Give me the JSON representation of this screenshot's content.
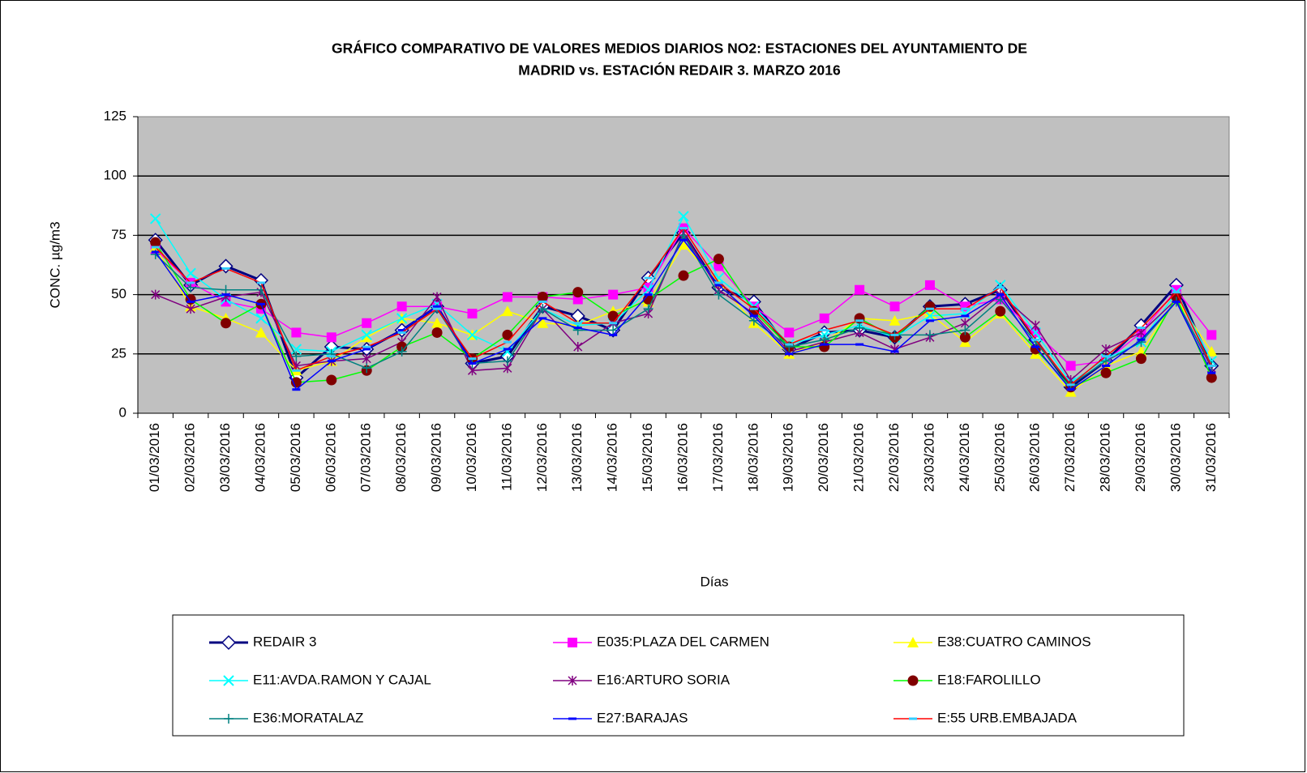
{
  "chart_data": {
    "type": "line",
    "title": [
      "GRÁFICO COMPARATIVO DE VALORES MEDIOS DIARIOS NO2: ESTACIONES DEL AYUNTAMIENTO DE",
      "MADRID vs.  ESTACIÓN REDAIR 3. MARZO 2016"
    ],
    "x_label": "Días",
    "y_label": "CONC.  µg/m3",
    "categories": [
      "01/03/2016",
      "02/03/2016",
      "03/03/2016",
      "04/03/2016",
      "05/03/2016",
      "06/03/2016",
      "07/03/2016",
      "08/03/2016",
      "09/03/2016",
      "10/03/2016",
      "11/03/2016",
      "12/03/2016",
      "13/03/2016",
      "14/03/2016",
      "15/03/2016",
      "16/03/2016",
      "17/03/2016",
      "18/03/2016",
      "19/03/2016",
      "20/03/2016",
      "21/03/2016",
      "22/03/2016",
      "23/03/2016",
      "24/03/2016",
      "25/03/2016",
      "26/03/2016",
      "27/03/2016",
      "28/03/2016",
      "29/03/2016",
      "30/03/2016",
      "31/03/2016"
    ],
    "ylim": [
      0,
      125
    ],
    "yticks": [
      0,
      25,
      50,
      75,
      100,
      125
    ],
    "grid": true,
    "background": "#c0c0c0",
    "series": [
      {
        "name": "REDAIR 3",
        "color": "#000080",
        "marker": "diamond",
        "marker_color": "#ffffff",
        "values": [
          73,
          54,
          62,
          56,
          15,
          28,
          27,
          35,
          45,
          21,
          24,
          45,
          41,
          35,
          57,
          76,
          53,
          47,
          27,
          34,
          35,
          32,
          45,
          46,
          52,
          31,
          11,
          22,
          37,
          54,
          20
        ]
      },
      {
        "name": "E035:PLAZA DEL CARMEN",
        "color": "#ff00ff",
        "marker": "square",
        "marker_color": "#ff00ff",
        "values": [
          69,
          55,
          47,
          44,
          34,
          32,
          38,
          45,
          45,
          42,
          49,
          49,
          48,
          50,
          53,
          78,
          62,
          45,
          34,
          40,
          52,
          45,
          54,
          45,
          48,
          34,
          20,
          22,
          34,
          52,
          33
        ]
      },
      {
        "name": "E38:CUATRO CAMINOS",
        "color": "#ffff00",
        "marker": "triangle",
        "marker_color": "#ffff00",
        "values": [
          70,
          45,
          40,
          34,
          18,
          22,
          32,
          40,
          38,
          33,
          43,
          38,
          37,
          43,
          47,
          71,
          55,
          38,
          25,
          30,
          40,
          39,
          42,
          30,
          42,
          25,
          9,
          20,
          26,
          48,
          26
        ]
      },
      {
        "name": "E11:AVDA.RAMON  Y CAJAL",
        "color": "#00ffff",
        "marker": "x",
        "marker_color": "#00ffff",
        "values": [
          82,
          59,
          48,
          40,
          27,
          26,
          33,
          40,
          46,
          33,
          26,
          44,
          37,
          38,
          52,
          83,
          57,
          45,
          29,
          33,
          37,
          32,
          41,
          42,
          54,
          34,
          13,
          23,
          30,
          51,
          22
        ]
      },
      {
        "name": "E16:ARTURO SORIA",
        "color": "#800080",
        "marker": "star",
        "marker_color": "#800080",
        "values": [
          50,
          44,
          49,
          51,
          20,
          22,
          23,
          30,
          49,
          18,
          19,
          44,
          28,
          38,
          42,
          76,
          52,
          42,
          26,
          30,
          34,
          27,
          32,
          38,
          50,
          37,
          14,
          27,
          34,
          48,
          19
        ]
      },
      {
        "name": "E18:FAROLILLO",
        "color": "#00ff00",
        "marker": "circle",
        "marker_color": "#800000",
        "values": [
          72,
          48,
          38,
          46,
          13,
          14,
          18,
          28,
          34,
          23,
          33,
          49,
          51,
          41,
          48,
          58,
          65,
          43,
          28,
          28,
          40,
          32,
          45,
          32,
          43,
          27,
          11,
          17,
          23,
          49,
          15
        ]
      },
      {
        "name": "E36:MORATALAZ",
        "color": "#008080",
        "marker": "plus",
        "marker_color": "#008080",
        "values": [
          67,
          53,
          52,
          52,
          24,
          25,
          19,
          26,
          44,
          21,
          22,
          44,
          35,
          35,
          44,
          75,
          50,
          39,
          28,
          31,
          36,
          33,
          33,
          35,
          48,
          30,
          12,
          22,
          30,
          47,
          20
        ]
      },
      {
        "name": "E27:BARAJAS",
        "color": "#0000ff",
        "marker": "dash",
        "marker_color": "#0000ff",
        "values": [
          68,
          47,
          50,
          46,
          10,
          22,
          27,
          35,
          45,
          21,
          27,
          40,
          36,
          33,
          50,
          73,
          54,
          41,
          25,
          29,
          29,
          26,
          39,
          41,
          50,
          28,
          10,
          20,
          31,
          47,
          17
        ]
      },
      {
        "name": "E:55 URB.EMBAJADA",
        "color": "#ff0000",
        "marker": "dash",
        "marker_color": "#33ccff",
        "values": [
          70,
          55,
          61,
          55,
          18,
          24,
          28,
          34,
          44,
          23,
          30,
          47,
          38,
          38,
          57,
          78,
          55,
          44,
          29,
          35,
          39,
          33,
          44,
          44,
          53,
          31,
          12,
          24,
          36,
          51,
          20
        ]
      }
    ]
  }
}
